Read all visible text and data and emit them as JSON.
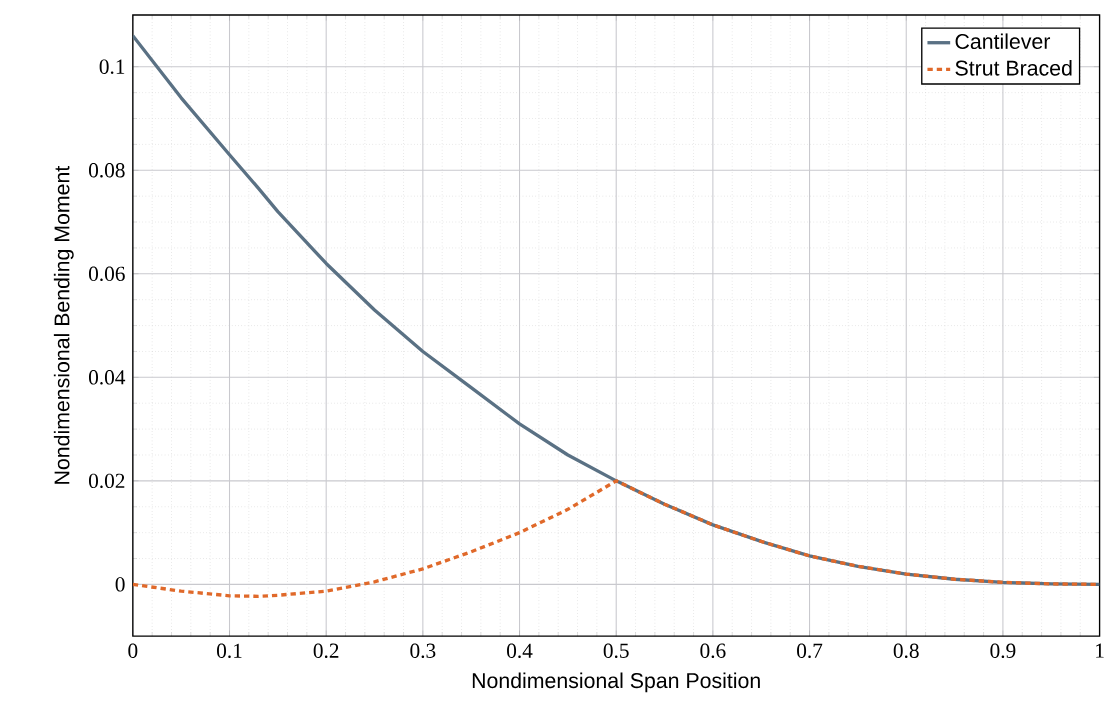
{
  "chart_data": {
    "type": "line",
    "xlabel": "Nondimensional Span Position",
    "ylabel": "Nondimensional Bending Moment",
    "x": [
      0,
      0.05,
      0.1,
      0.13,
      0.15,
      0.2,
      0.25,
      0.3,
      0.35,
      0.4,
      0.45,
      0.5,
      0.55,
      0.6,
      0.65,
      0.7,
      0.75,
      0.8,
      0.85,
      0.9,
      0.95,
      1.0
    ],
    "series": [
      {
        "name": "Cantilever",
        "color": "#5a7184",
        "line_style": "solid",
        "values": [
          0.106,
          0.094,
          0.083,
          0.0765,
          0.072,
          0.062,
          0.053,
          0.045,
          0.038,
          0.031,
          0.025,
          0.02,
          0.0155,
          0.0115,
          0.0083,
          0.0055,
          0.0035,
          0.002,
          0.001,
          0.0004,
          0.0001,
          0
        ]
      },
      {
        "name": "Strut Braced",
        "color": "#e0692a",
        "line_style": "dashed",
        "values": [
          0,
          -0.0013,
          -0.0022,
          -0.0023,
          -0.0021,
          -0.0013,
          0.0005,
          0.003,
          0.0063,
          0.01,
          0.0145,
          0.02,
          0.0155,
          0.0115,
          0.0083,
          0.0055,
          0.0035,
          0.002,
          0.001,
          0.0004,
          0.0001,
          0
        ]
      }
    ],
    "xlim": [
      0,
      1
    ],
    "ylim": [
      -0.01,
      0.11
    ],
    "xticks": [
      0,
      0.1,
      0.2,
      0.3,
      0.4,
      0.5,
      0.6,
      0.7,
      0.8,
      0.9,
      1
    ],
    "yticks": [
      0,
      0.02,
      0.04,
      0.06,
      0.08,
      0.1
    ],
    "grid": true,
    "legend": "top right"
  }
}
